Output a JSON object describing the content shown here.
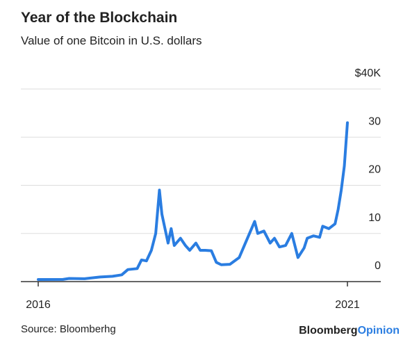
{
  "chart_data": {
    "type": "line",
    "title": "Year of the Blockchain",
    "subtitle": "Value of one Bitcoin in U.S. dollars",
    "source": "Source: Bloomberhg",
    "brand": "Bloomberg",
    "brand_suffix": "Opinion",
    "x": [
      2016.0,
      2016.4,
      2016.5,
      2016.75,
      2017.0,
      2017.2,
      2017.35,
      2017.45,
      2017.6,
      2017.67,
      2017.75,
      2017.83,
      2017.9,
      2017.96,
      2018.0,
      2018.05,
      2018.1,
      2018.15,
      2018.2,
      2018.3,
      2018.38,
      2018.45,
      2018.55,
      2018.62,
      2018.7,
      2018.8,
      2018.88,
      2018.96,
      2019.1,
      2019.25,
      2019.35,
      2019.45,
      2019.5,
      2019.55,
      2019.65,
      2019.75,
      2019.82,
      2019.9,
      2020.0,
      2020.1,
      2020.2,
      2020.3,
      2020.35,
      2020.45,
      2020.55,
      2020.6,
      2020.7,
      2020.8,
      2020.85,
      2020.9,
      2020.95,
      2021.0
    ],
    "series": [
      {
        "color": "#2a7de1",
        "values": [
          0.43,
          0.45,
          0.65,
          0.6,
          0.95,
          1.1,
          1.4,
          2.5,
          2.7,
          4.5,
          4.3,
          6.5,
          10,
          19,
          14,
          11,
          8,
          11,
          7.5,
          9,
          7.5,
          6.5,
          8,
          6.5,
          6.5,
          6.4,
          4,
          3.5,
          3.6,
          5,
          8,
          11,
          12.5,
          10,
          10.5,
          8,
          9,
          7.2,
          7.5,
          10,
          5,
          7,
          9,
          9.5,
          9.2,
          11.5,
          11,
          12,
          15,
          19,
          24,
          33
        ]
      }
    ],
    "xlim": [
      2015.85,
      2021.35
    ],
    "xticks": [
      2016,
      2021
    ],
    "ylim": [
      0,
      40
    ],
    "yticks": [
      0,
      10,
      20,
      30,
      {
        "value": 40,
        "label": "$40K"
      }
    ],
    "grid": true
  }
}
